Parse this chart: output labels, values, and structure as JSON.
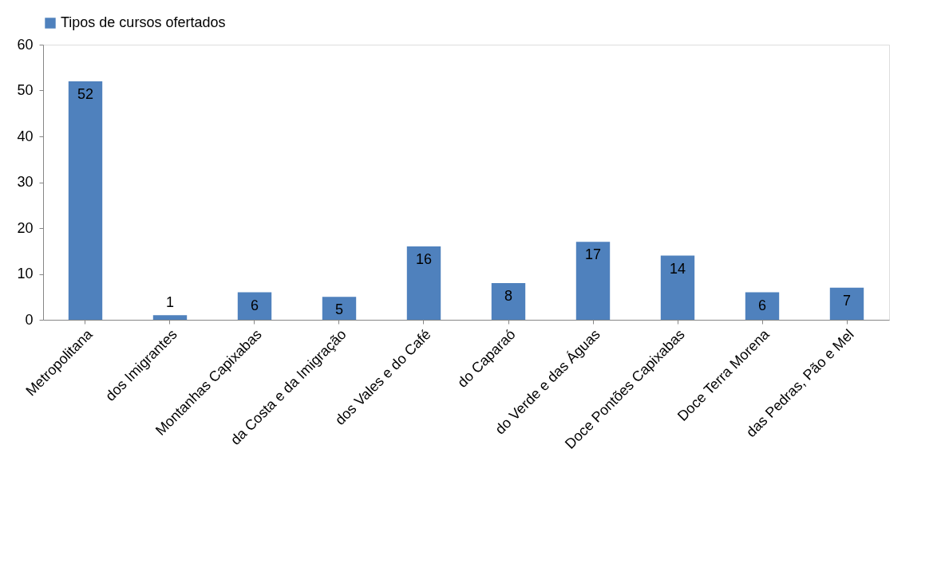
{
  "chart_data": {
    "type": "bar",
    "categories": [
      "Metropolitana",
      "dos Imigrantes",
      "Montanhas Capixabas",
      "da Costa e da Imigração",
      "dos Vales e do Café",
      "do Caparaó",
      "do Verde e das Águas",
      "Doce Pontões Capixabas",
      "Doce Terra Morena",
      "das Pedras, Pão e Mel"
    ],
    "series": [
      {
        "name": "Tipos de cursos ofertados",
        "color": "#4f81bd",
        "values": [
          52,
          1,
          6,
          5,
          16,
          8,
          17,
          14,
          6,
          7
        ]
      }
    ],
    "ylim": [
      0,
      60
    ],
    "yticks": [
      0,
      10,
      20,
      30,
      40,
      50,
      60
    ],
    "grid": false,
    "legend": "top",
    "data_labels": true
  }
}
